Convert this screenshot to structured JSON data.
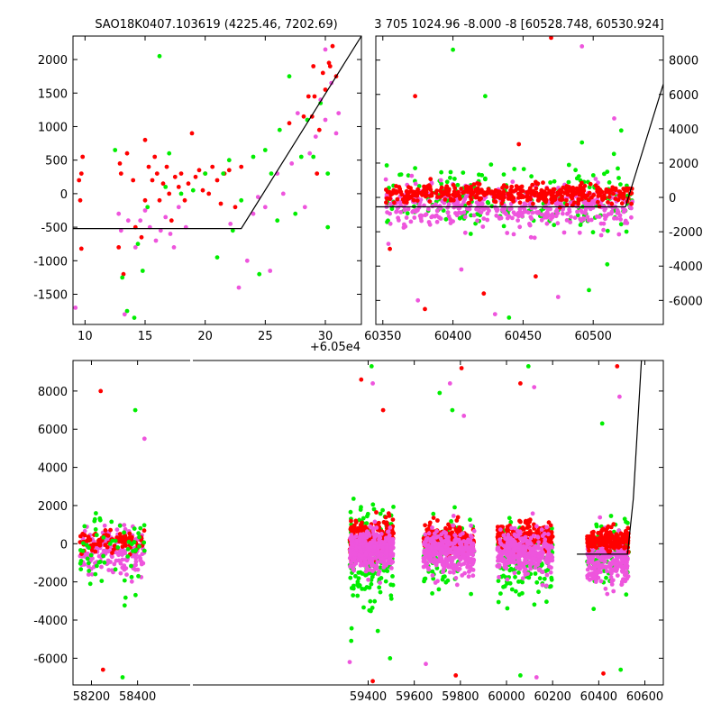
{
  "titles": {
    "top_left": "SAO18K0407.103619 (4225.46, 7202.69)",
    "top_right": "3 705 1024.96 -8.000 -8 [60528.748, 60530.924]"
  },
  "offset_label": "+6.05e4",
  "colors": {
    "red": "#ff0000",
    "green": "#00ee00",
    "magenta": "#ee55dd",
    "line": "#000000",
    "axes": "#000000"
  },
  "chart_data": [
    {
      "id": "top_left",
      "type": "scatter",
      "title": "SAO18K0407.103619 (4225.46, 7202.69)",
      "x_offset": 60500,
      "xlim": [
        9,
        33
      ],
      "ylim": [
        -1950,
        2350
      ],
      "xticks": [
        "10",
        "15",
        "20",
        "25",
        "30"
      ],
      "xtick_values": [
        10,
        15,
        20,
        25,
        30
      ],
      "yticks": [
        "-1500",
        "-1000",
        "-500",
        "0",
        "500",
        "1000",
        "1500",
        "2000"
      ],
      "ytick_values": [
        -1500,
        -1000,
        -500,
        0,
        500,
        1000,
        1500,
        2000
      ],
      "model_line": [
        [
          9,
          -520
        ],
        [
          23,
          -520
        ],
        [
          33,
          2350
        ]
      ],
      "series": [
        {
          "color": "red",
          "points": [
            [
              9.5,
              200
            ],
            [
              9.7,
              300
            ],
            [
              9.6,
              -100
            ],
            [
              9.8,
              550
            ],
            [
              9.7,
              -820
            ],
            [
              12.8,
              -800
            ],
            [
              13,
              300
            ],
            [
              12.9,
              450
            ],
            [
              13.2,
              -1200
            ],
            [
              13.5,
              600
            ],
            [
              14,
              200
            ],
            [
              14.2,
              -500
            ],
            [
              14.7,
              -650
            ],
            [
              15,
              -100
            ],
            [
              15,
              800
            ],
            [
              15.3,
              400
            ],
            [
              15.6,
              200
            ],
            [
              15.8,
              550
            ],
            [
              16,
              300
            ],
            [
              16.2,
              -100
            ],
            [
              16.5,
              150
            ],
            [
              16.8,
              400
            ],
            [
              17,
              0
            ],
            [
              17.2,
              -400
            ],
            [
              17.5,
              250
            ],
            [
              17.8,
              100
            ],
            [
              18,
              300
            ],
            [
              18.3,
              -100
            ],
            [
              18.6,
              150
            ],
            [
              18.9,
              900
            ],
            [
              19.2,
              250
            ],
            [
              19.5,
              350
            ],
            [
              19.8,
              50
            ],
            [
              20,
              300
            ],
            [
              20.3,
              0
            ],
            [
              20.6,
              400
            ],
            [
              21,
              200
            ],
            [
              21.3,
              -150
            ],
            [
              21.6,
              300
            ],
            [
              22,
              350
            ],
            [
              22.5,
              -200
            ],
            [
              23,
              400
            ],
            [
              27,
              1050
            ],
            [
              28.2,
              1150
            ],
            [
              28.6,
              1450
            ],
            [
              28.9,
              1150
            ],
            [
              29,
              1900
            ],
            [
              29.1,
              1450
            ],
            [
              29.3,
              300
            ],
            [
              29.8,
              1800
            ],
            [
              30,
              1550
            ],
            [
              30.3,
              1950
            ],
            [
              30.6,
              2200
            ],
            [
              30.9,
              1750
            ],
            [
              29.5,
              950
            ],
            [
              30.4,
              1900
            ]
          ]
        },
        {
          "color": "green",
          "points": [
            [
              12.5,
              650
            ],
            [
              13.1,
              -1250
            ],
            [
              13.5,
              -1750
            ],
            [
              14.1,
              -1850
            ],
            [
              14.4,
              -750
            ],
            [
              14.8,
              -1150
            ],
            [
              15.2,
              -200
            ],
            [
              16.2,
              2050
            ],
            [
              16.7,
              100
            ],
            [
              17,
              600
            ],
            [
              18,
              0
            ],
            [
              19,
              50
            ],
            [
              20,
              300
            ],
            [
              21,
              -950
            ],
            [
              21.5,
              300
            ],
            [
              22,
              500
            ],
            [
              22.3,
              -550
            ],
            [
              23,
              -100
            ],
            [
              24,
              550
            ],
            [
              24.5,
              -1200
            ],
            [
              25,
              650
            ],
            [
              25.5,
              300
            ],
            [
              26,
              -400
            ],
            [
              26.2,
              950
            ],
            [
              27,
              1750
            ],
            [
              27.5,
              -300
            ],
            [
              28,
              550
            ],
            [
              28.5,
              1100
            ],
            [
              29,
              550
            ],
            [
              29.6,
              1350
            ],
            [
              30.2,
              -500
            ],
            [
              30.2,
              300
            ]
          ]
        },
        {
          "color": "magenta",
          "points": [
            [
              9.2,
              -1700
            ],
            [
              12.8,
              -300
            ],
            [
              13,
              -550
            ],
            [
              13.3,
              -1800
            ],
            [
              13.6,
              -400
            ],
            [
              14.2,
              -800
            ],
            [
              14.6,
              -400
            ],
            [
              15,
              -250
            ],
            [
              15.4,
              -500
            ],
            [
              15.9,
              -700
            ],
            [
              16.3,
              -550
            ],
            [
              16.7,
              -350
            ],
            [
              17.1,
              -600
            ],
            [
              17.4,
              -800
            ],
            [
              17.8,
              -200
            ],
            [
              18.4,
              -500
            ],
            [
              22.1,
              -450
            ],
            [
              22.8,
              -1400
            ],
            [
              23.5,
              -1000
            ],
            [
              24,
              -300
            ],
            [
              24.4,
              -50
            ],
            [
              25,
              -200
            ],
            [
              25.4,
              -1150
            ],
            [
              26,
              300
            ],
            [
              26.5,
              0
            ],
            [
              27.2,
              450
            ],
            [
              27.7,
              1200
            ],
            [
              28.3,
              -200
            ],
            [
              28.7,
              600
            ],
            [
              29.2,
              850
            ],
            [
              29.6,
              1400
            ],
            [
              30,
              1100
            ],
            [
              30.5,
              1650
            ],
            [
              30.9,
              900
            ],
            [
              31.1,
              1200
            ],
            [
              30,
              2150
            ]
          ]
        }
      ]
    },
    {
      "id": "top_right",
      "type": "scatter",
      "title": "3 705 1024.96 -8.000 -8 [60528.748, 60530.924]",
      "xlim": [
        60345,
        60550
      ],
      "ylim": [
        -7400,
        9400
      ],
      "xticks": [
        "60350",
        "60400",
        "60450",
        "60500"
      ],
      "xtick_values": [
        60350,
        60400,
        60450,
        60500
      ],
      "yticks": [
        "-6000",
        "-4000",
        "-2000",
        "0",
        "2000",
        "4000",
        "6000",
        "8000"
      ],
      "ytick_values": [
        -6000,
        -4000,
        -2000,
        0,
        2000,
        4000,
        6000,
        8000
      ],
      "model_line": [
        [
          60345,
          -550
        ],
        [
          60523,
          -550
        ],
        [
          60550,
          6600
        ]
      ],
      "outliers": [
        [
          60470,
          9300
        ],
        [
          60400,
          8600
        ],
        [
          60492,
          8800
        ],
        [
          60373,
          5900
        ],
        [
          60423,
          5900
        ],
        [
          60515,
          4600
        ],
        [
          60447,
          3100
        ],
        [
          60492,
          3200
        ],
        [
          60375,
          -6000
        ],
        [
          60422,
          -5600
        ],
        [
          60440,
          -7000
        ],
        [
          60475,
          -5800
        ],
        [
          60380,
          -6500
        ],
        [
          60497,
          -5400
        ],
        [
          60406,
          -4200
        ],
        [
          60459,
          -4600
        ],
        [
          60510,
          -3900
        ],
        [
          60430,
          -6800
        ],
        [
          60355,
          -3000
        ],
        [
          60520,
          3900
        ]
      ],
      "clusters": [
        {
          "color": "green",
          "x_range": [
            60352,
            60528
          ],
          "center": 0,
          "spread": 1600,
          "count": 220
        },
        {
          "color": "magenta",
          "x_range": [
            60352,
            60528
          ],
          "center": -600,
          "spread": 1100,
          "count": 420
        },
        {
          "color": "red",
          "x_range": [
            60352,
            60528
          ],
          "center": 200,
          "spread": 500,
          "count": 420
        }
      ]
    },
    {
      "id": "bottom",
      "type": "scatter",
      "xlim": [
        58120,
        60680
      ],
      "ylim": [
        -7400,
        9600
      ],
      "xticks": [
        "58200",
        "58400",
        "59400",
        "59600",
        "59800",
        "60000",
        "60200",
        "60400",
        "60600"
      ],
      "xtick_values": [
        58200,
        58400,
        59400,
        59600,
        59800,
        60000,
        60200,
        60400,
        60600
      ],
      "yticks": [
        "-6000",
        "-4000",
        "-2000",
        "0",
        "2000",
        "4000",
        "6000",
        "8000"
      ],
      "ytick_values": [
        -6000,
        -4000,
        -2000,
        0,
        2000,
        4000,
        6000,
        8000
      ],
      "model_line": [
        [
          60305,
          -550
        ],
        [
          60525,
          -550
        ],
        [
          60550,
          2350
        ],
        [
          60585,
          9600
        ]
      ],
      "outliers": [
        [
          58240,
          8000
        ],
        [
          58390,
          7000
        ],
        [
          58430,
          5500
        ],
        [
          59370,
          8600
        ],
        [
          59415,
          9300
        ],
        [
          59420,
          8400
        ],
        [
          59465,
          7000
        ],
        [
          59710,
          7900
        ],
        [
          59755,
          8400
        ],
        [
          59805,
          9200
        ],
        [
          59765,
          7000
        ],
        [
          59815,
          6700
        ],
        [
          60060,
          8400
        ],
        [
          60095,
          9300
        ],
        [
          60120,
          8200
        ],
        [
          60480,
          9300
        ],
        [
          60415,
          6300
        ],
        [
          60490,
          7700
        ],
        [
          58250,
          -6600
        ],
        [
          58335,
          -7000
        ],
        [
          59320,
          -6200
        ],
        [
          59420,
          -7200
        ],
        [
          59495,
          -6000
        ],
        [
          59650,
          -6300
        ],
        [
          59780,
          -6900
        ],
        [
          60060,
          -6900
        ],
        [
          60130,
          -7000
        ],
        [
          60420,
          -6800
        ],
        [
          60495,
          -6600
        ]
      ],
      "clusters": [
        {
          "color": "magenta",
          "x_range": [
            58150,
            58430
          ],
          "center": -400,
          "spread": 1100,
          "count": 200
        },
        {
          "color": "red",
          "x_range": [
            58150,
            58430
          ],
          "center": 100,
          "spread": 500,
          "count": 90
        },
        {
          "color": "green",
          "x_range": [
            58150,
            58430
          ],
          "center": -500,
          "spread": 1900,
          "count": 60
        },
        {
          "color": "green",
          "x_range": [
            59320,
            59510
          ],
          "center": -700,
          "spread": 2400,
          "count": 190
        },
        {
          "color": "red",
          "x_range": [
            59320,
            59510
          ],
          "center": 300,
          "spread": 900,
          "count": 230
        },
        {
          "color": "magenta",
          "x_range": [
            59320,
            59510
          ],
          "center": -400,
          "spread": 900,
          "count": 400
        },
        {
          "color": "green",
          "x_range": [
            59640,
            59860
          ],
          "center": -300,
          "spread": 1600,
          "count": 110
        },
        {
          "color": "red",
          "x_range": [
            59640,
            59860
          ],
          "center": 300,
          "spread": 700,
          "count": 190
        },
        {
          "color": "magenta",
          "x_range": [
            59640,
            59860
          ],
          "center": -500,
          "spread": 1000,
          "count": 320
        },
        {
          "color": "green",
          "x_range": [
            59960,
            60200
          ],
          "center": -900,
          "spread": 1800,
          "count": 140
        },
        {
          "color": "red",
          "x_range": [
            59960,
            60200
          ],
          "center": 300,
          "spread": 700,
          "count": 220
        },
        {
          "color": "magenta",
          "x_range": [
            59960,
            60200
          ],
          "center": -500,
          "spread": 1000,
          "count": 320
        },
        {
          "color": "green",
          "x_range": [
            60350,
            60530
          ],
          "center": -500,
          "spread": 1700,
          "count": 80
        },
        {
          "color": "magenta",
          "x_range": [
            60350,
            60530
          ],
          "center": -800,
          "spread": 1200,
          "count": 250
        },
        {
          "color": "red",
          "x_range": [
            60350,
            60530
          ],
          "center": 200,
          "spread": 500,
          "count": 220
        }
      ]
    }
  ]
}
